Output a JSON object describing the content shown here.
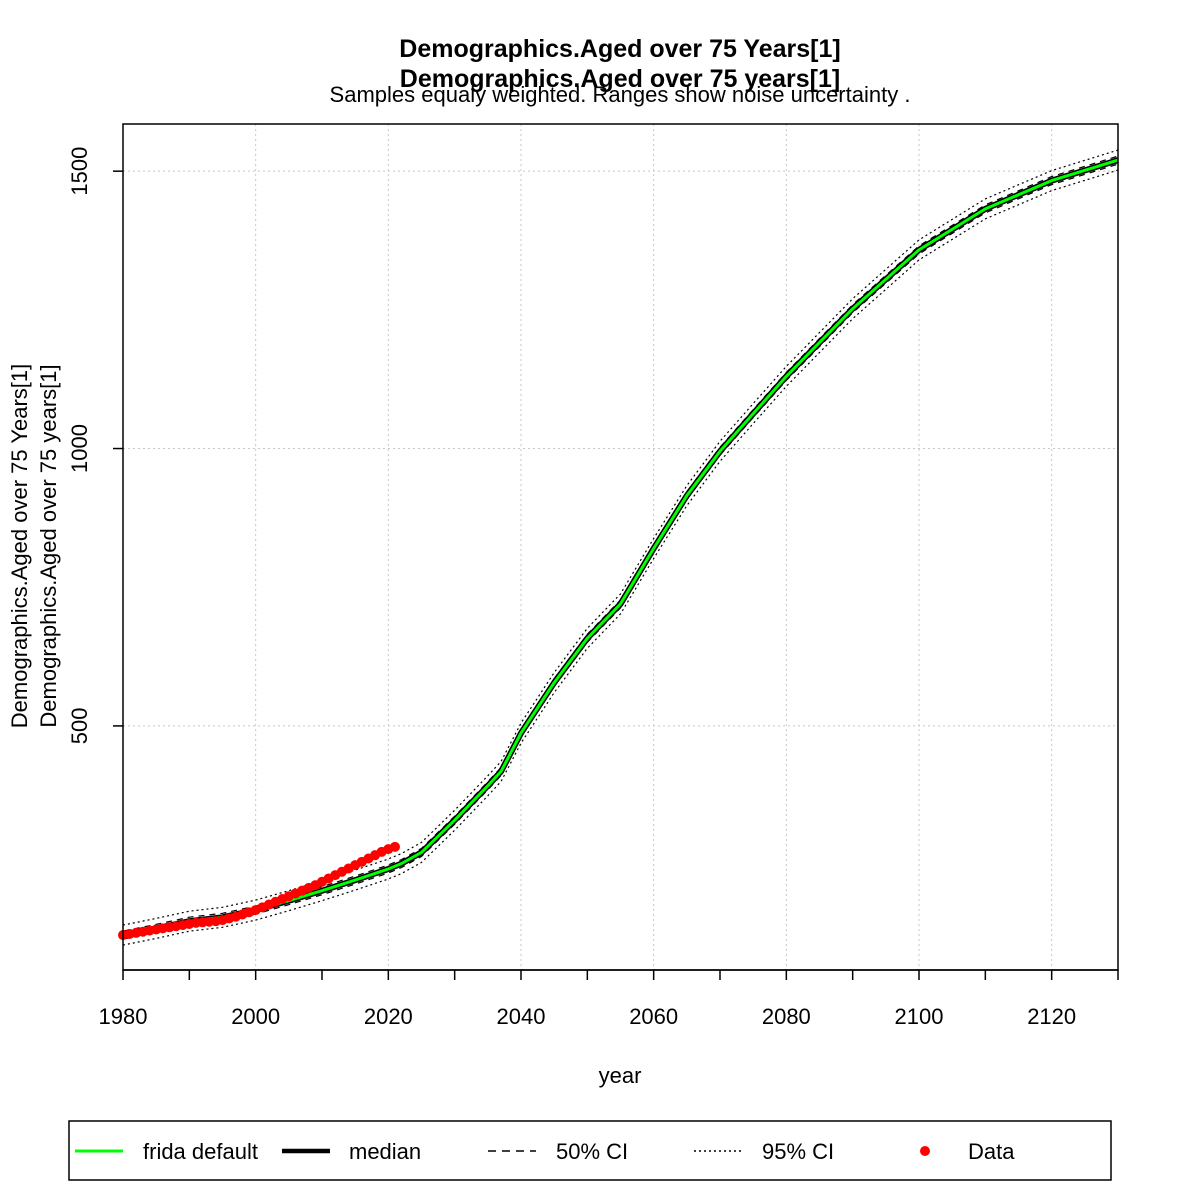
{
  "chart_data": {
    "type": "line",
    "title_lines": [
      "Demographics.Aged over 75 Years[1]",
      "Demographics.Aged over 75 years[1]"
    ],
    "subtitle": "Samples equaly weighted. Ranges show  noise uncertainty .",
    "xlabel": "year",
    "ylabel_lines": [
      "Demographics.Aged over 75 Years[1]",
      "Demographics.Aged over 75 years[1]"
    ],
    "xlim": [
      1980,
      2130
    ],
    "ylim": [
      60,
      1585
    ],
    "x_ticks": [
      1980,
      2000,
      2020,
      2040,
      2060,
      2080,
      2100,
      2120
    ],
    "x_tick_marks": [
      1980,
      1990,
      2000,
      2010,
      2020,
      2030,
      2040,
      2050,
      2060,
      2070,
      2080,
      2090,
      2100,
      2110,
      2120,
      2130
    ],
    "y_ticks": [
      500,
      1000,
      1500
    ],
    "grid": true,
    "legend_position": "bottom",
    "colors": {
      "frida_default": "#00ff00",
      "median": "#000000",
      "data": "#ff0000",
      "grid": "#c8c8c8"
    },
    "series": [
      {
        "name": "frida default",
        "style": "solid-green",
        "x": [
          1980,
          1985,
          1990,
          1995,
          2000,
          2005,
          2010,
          2015,
          2020,
          2022,
          2025,
          2030,
          2035,
          2037,
          2040,
          2045,
          2050,
          2055,
          2060,
          2065,
          2070,
          2075,
          2080,
          2090,
          2100,
          2110,
          2120,
          2130
        ],
        "y": [
          123,
          135,
          148,
          155,
          168,
          185,
          203,
          222,
          242,
          252,
          272,
          330,
          392,
          418,
          487,
          578,
          658,
          720,
          820,
          915,
          995,
          1063,
          1130,
          1252,
          1358,
          1432,
          1483,
          1520
        ]
      },
      {
        "name": "median",
        "style": "solid-black",
        "x": [
          1980,
          1985,
          1990,
          1995,
          2000,
          2005,
          2010,
          2015,
          2020,
          2022,
          2025,
          2030,
          2035,
          2037,
          2040,
          2045,
          2050,
          2055,
          2060,
          2065,
          2070,
          2075,
          2080,
          2090,
          2100,
          2110,
          2120,
          2130
        ],
        "y": [
          123,
          135,
          148,
          155,
          168,
          185,
          203,
          222,
          242,
          252,
          272,
          330,
          392,
          418,
          487,
          578,
          658,
          720,
          820,
          915,
          995,
          1063,
          1130,
          1252,
          1358,
          1432,
          1483,
          1520
        ]
      },
      {
        "name": "50% CI",
        "style": "dashed",
        "offset": 4
      },
      {
        "name": "95% CI",
        "style": "dotted",
        "offset": 10
      },
      {
        "name": "Data",
        "style": "points-red",
        "x": [
          1980,
          1981,
          1982,
          1983,
          1984,
          1985,
          1986,
          1987,
          1988,
          1989,
          1990,
          1991,
          1992,
          1993,
          1994,
          1995,
          1996,
          1997,
          1998,
          1999,
          2000,
          2001,
          2002,
          2003,
          2004,
          2005,
          2006,
          2007,
          2008,
          2009,
          2010,
          2011,
          2012,
          2013,
          2014,
          2015,
          2016,
          2017,
          2018,
          2019,
          2020,
          2021
        ],
        "y": [
          123,
          125,
          127,
          129,
          131,
          133,
          135,
          137,
          139,
          141,
          143,
          145,
          146,
          147,
          148,
          150,
          153,
          156,
          160,
          164,
          168,
          173,
          178,
          183,
          188,
          193,
          198,
          203,
          208,
          213,
          219,
          225,
          231,
          237,
          243,
          249,
          255,
          261,
          267,
          273,
          278,
          282
        ]
      }
    ],
    "legend": [
      "frida default",
      "median",
      "50% CI",
      "95% CI",
      "Data"
    ]
  }
}
